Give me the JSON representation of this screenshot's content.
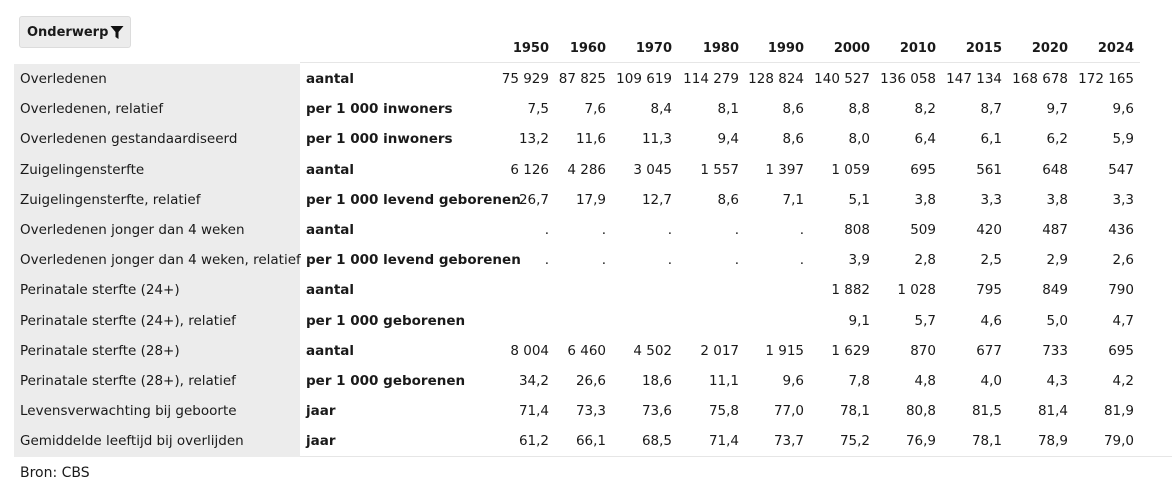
{
  "filter": {
    "label": "Onderwerp",
    "icon": "filter-icon"
  },
  "years": [
    "1950",
    "1960",
    "1970",
    "1980",
    "1990",
    "2000",
    "2010",
    "2015",
    "2020",
    "2024"
  ],
  "rows": [
    {
      "label": "Overledenen",
      "unit": "aantal",
      "values": [
        "75 929",
        "87 825",
        "109 619",
        "114 279",
        "128 824",
        "140 527",
        "136 058",
        "147 134",
        "168 678",
        "172 165"
      ]
    },
    {
      "label": "Overledenen, relatief",
      "unit": "per 1 000 inwoners",
      "values": [
        "7,5",
        "7,6",
        "8,4",
        "8,1",
        "8,6",
        "8,8",
        "8,2",
        "8,7",
        "9,7",
        "9,6"
      ]
    },
    {
      "label": "Overledenen gestandaardiseerd",
      "unit": "per 1 000 inwoners",
      "values": [
        "13,2",
        "11,6",
        "11,3",
        "9,4",
        "8,6",
        "8,0",
        "6,4",
        "6,1",
        "6,2",
        "5,9"
      ]
    },
    {
      "label": "Zuigelingensterfte",
      "unit": "aantal",
      "values": [
        "6 126",
        "4 286",
        "3 045",
        "1 557",
        "1 397",
        "1 059",
        "695",
        "561",
        "648",
        "547"
      ]
    },
    {
      "label": "Zuigelingensterfte, relatief",
      "unit": "per 1 000 levend geborenen",
      "values": [
        "26,7",
        "17,9",
        "12,7",
        "8,6",
        "7,1",
        "5,1",
        "3,8",
        "3,3",
        "3,8",
        "3,3"
      ]
    },
    {
      "label": "Overledenen jonger dan 4 weken",
      "unit": "aantal",
      "values": [
        ".",
        ".",
        ".",
        ".",
        ".",
        "808",
        "509",
        "420",
        "487",
        "436"
      ]
    },
    {
      "label": "Overledenen jonger dan 4 weken, relatief",
      "unit": "per 1 000 levend geborenen",
      "values": [
        ".",
        ".",
        ".",
        ".",
        ".",
        "3,9",
        "2,8",
        "2,5",
        "2,9",
        "2,6"
      ]
    },
    {
      "label": "Perinatale sterfte (24+)",
      "unit": "aantal",
      "values": [
        "",
        "",
        "",
        "",
        "",
        "1 882",
        "1 028",
        "795",
        "849",
        "790"
      ]
    },
    {
      "label": "Perinatale sterfte (24+), relatief",
      "unit": "per 1 000 geborenen",
      "values": [
        "",
        "",
        "",
        "",
        "",
        "9,1",
        "5,7",
        "4,6",
        "5,0",
        "4,7"
      ]
    },
    {
      "label": "Perinatale sterfte (28+)",
      "unit": "aantal",
      "values": [
        "8 004",
        "6 460",
        "4 502",
        "2 017",
        "1 915",
        "1 629",
        "870",
        "677",
        "733",
        "695"
      ]
    },
    {
      "label": "Perinatale sterfte (28+), relatief",
      "unit": "per 1 000 geborenen",
      "values": [
        "34,2",
        "26,6",
        "18,6",
        "11,1",
        "9,6",
        "7,8",
        "4,8",
        "4,0",
        "4,3",
        "4,2"
      ]
    },
    {
      "label": "Levensverwachting bij geboorte",
      "unit": "jaar",
      "values": [
        "71,4",
        "73,3",
        "73,6",
        "75,8",
        "77,0",
        "78,1",
        "80,8",
        "81,5",
        "81,4",
        "81,9"
      ]
    },
    {
      "label": "Gemiddelde leeftijd bij overlijden",
      "unit": "jaar",
      "values": [
        "61,2",
        "66,1",
        "68,5",
        "71,4",
        "73,7",
        "75,2",
        "76,9",
        "78,1",
        "78,9",
        "79,0"
      ]
    }
  ],
  "source": "Bron: CBS"
}
